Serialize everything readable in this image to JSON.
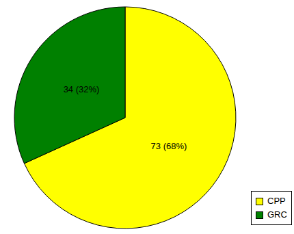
{
  "chart_data": {
    "type": "pie",
    "categories": [
      "CPP",
      "GRC"
    ],
    "values": [
      73,
      34
    ],
    "value_labels": [
      "73 (68%)",
      "34 (32%)"
    ],
    "colors": [
      "#ffff00",
      "#008000"
    ],
    "data_labels": true,
    "legend": "lower right"
  }
}
